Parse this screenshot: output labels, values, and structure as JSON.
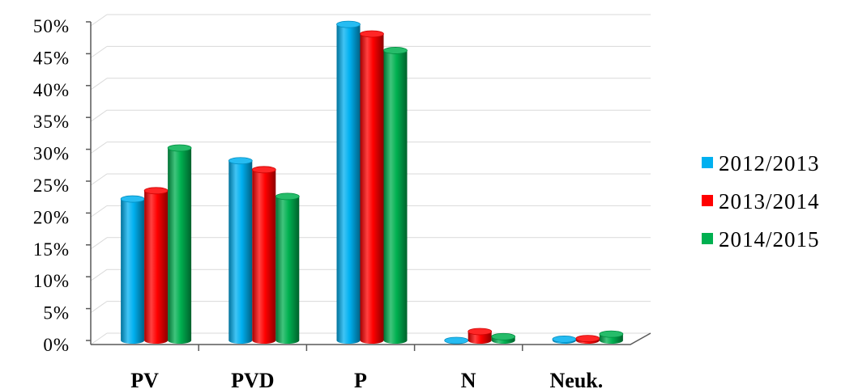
{
  "chart_data": {
    "type": "bar",
    "categories": [
      "PV",
      "PVD",
      "P",
      "N",
      "Neuk."
    ],
    "series": [
      {
        "name": "2012/2013",
        "color": "#00b0f0",
        "values": [
          22.2,
          28.2,
          49.6,
          0.0,
          0.2
        ]
      },
      {
        "name": "2013/2014",
        "color": "#ff0000",
        "values": [
          23.5,
          26.8,
          48.1,
          1.4,
          0.3
        ]
      },
      {
        "name": "2014/2015",
        "color": "#00b050",
        "values": [
          30.2,
          22.6,
          45.5,
          0.6,
          1.0
        ]
      }
    ],
    "ylim": [
      0,
      50
    ],
    "yticks": [
      "0%",
      "5%",
      "10%",
      "15%",
      "20%",
      "25%",
      "30%",
      "35%",
      "40%",
      "45%",
      "50%"
    ],
    "grid": true,
    "legend": "right",
    "bar_style": "3d-cylinder"
  }
}
